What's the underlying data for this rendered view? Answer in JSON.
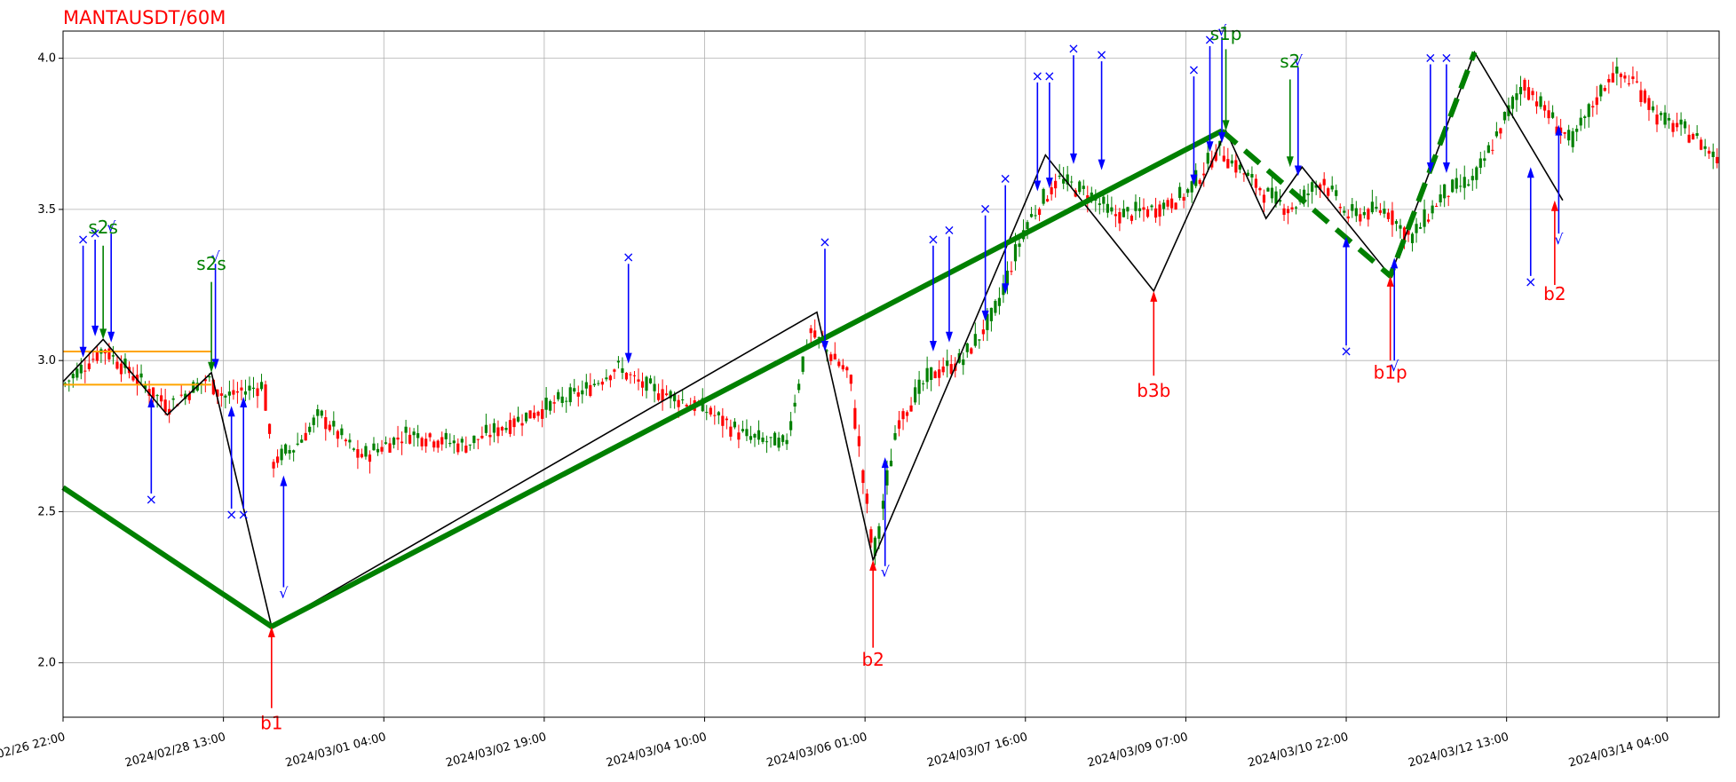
{
  "chart_data": {
    "type": "line",
    "title": "MANTAUSDT/60M",
    "title_color": "#ff0000",
    "xlabel": "",
    "ylabel": "",
    "grid": true,
    "ylim": [
      1.82,
      4.09
    ],
    "xlim": [
      0,
      413
    ],
    "y_ticks": [
      2.0,
      2.5,
      3.0,
      3.5,
      4.0
    ],
    "y_tick_labels": [
      "2.0",
      "2.5",
      "3.0",
      "3.5",
      "4.0"
    ],
    "x_ticks": [
      0,
      40,
      80,
      120,
      160,
      200,
      240,
      280,
      320,
      360,
      400
    ],
    "x_tick_labels": [
      "2024/02/26 22:00",
      "2024/02/28 13:00",
      "2024/03/01 04:00",
      "2024/03/02 19:00",
      "2024/03/04 10:00",
      "2024/03/06 01:00",
      "2024/03/07 16:00",
      "2024/03/09 07:00",
      "2024/03/10 22:00",
      "2024/03/12 13:00",
      "2024/03/14 04:00"
    ],
    "colors": {
      "up": "#008000",
      "down": "#ff0000",
      "zigzag": "#000000",
      "trend": "#008000",
      "box": "#ffa500",
      "blue": "#0000ff",
      "buy": "#ff0000",
      "sell": "#008000"
    },
    "price_anchors": [
      [
        0,
        2.92
      ],
      [
        10,
        3.04
      ],
      [
        26,
        2.85
      ],
      [
        36,
        2.94
      ],
      [
        40,
        2.88
      ],
      [
        50,
        2.92
      ],
      [
        52,
        2.66
      ],
      [
        58,
        2.72
      ],
      [
        64,
        2.82
      ],
      [
        74,
        2.68
      ],
      [
        86,
        2.76
      ],
      [
        100,
        2.72
      ],
      [
        116,
        2.82
      ],
      [
        130,
        2.9
      ],
      [
        138,
        2.98
      ],
      [
        144,
        2.92
      ],
      [
        160,
        2.84
      ],
      [
        170,
        2.75
      ],
      [
        180,
        2.72
      ],
      [
        186,
        3.1
      ],
      [
        196,
        2.95
      ],
      [
        202,
        2.35
      ],
      [
        208,
        2.8
      ],
      [
        216,
        2.95
      ],
      [
        224,
        3.0
      ],
      [
        232,
        3.15
      ],
      [
        240,
        3.45
      ],
      [
        248,
        3.6
      ],
      [
        256,
        3.55
      ],
      [
        262,
        3.48
      ],
      [
        272,
        3.5
      ],
      [
        280,
        3.55
      ],
      [
        288,
        3.7
      ],
      [
        296,
        3.6
      ],
      [
        300,
        3.55
      ],
      [
        306,
        3.5
      ],
      [
        314,
        3.6
      ],
      [
        320,
        3.48
      ],
      [
        330,
        3.5
      ],
      [
        336,
        3.4
      ],
      [
        344,
        3.55
      ],
      [
        352,
        3.6
      ],
      [
        364,
        3.92
      ],
      [
        376,
        3.72
      ],
      [
        386,
        3.95
      ],
      [
        392,
        3.92
      ],
      [
        398,
        3.8
      ],
      [
        406,
        3.75
      ],
      [
        413,
        3.66
      ]
    ],
    "zigzag": [
      [
        0,
        2.93
      ],
      [
        10,
        3.07
      ],
      [
        26,
        2.82
      ],
      [
        37,
        2.96
      ],
      [
        52,
        2.12
      ],
      [
        188,
        3.16
      ],
      [
        202,
        2.34
      ],
      [
        245,
        3.68
      ],
      [
        272,
        3.23
      ],
      [
        290,
        3.76
      ],
      [
        300,
        3.47
      ],
      [
        309,
        3.64
      ],
      [
        331,
        3.28
      ],
      [
        352,
        4.02
      ],
      [
        374,
        3.53
      ]
    ],
    "trend_solid": [
      [
        0,
        2.58
      ],
      [
        52,
        2.12
      ],
      [
        289,
        3.76
      ]
    ],
    "trend_dashed": [
      [
        289,
        3.76
      ],
      [
        331,
        3.28
      ],
      [
        352,
        4.02
      ]
    ],
    "box_lines": [
      {
        "y": 3.03,
        "x_start": 0,
        "x_end": 37
      },
      {
        "y": 2.92,
        "x_start": 0,
        "x_end": 37
      }
    ],
    "blue_markers": [
      {
        "x": 5,
        "y_top": 3.38,
        "y_tip": 3.01,
        "dir": "down",
        "symbol": "×"
      },
      {
        "x": 8,
        "y_top": 3.4,
        "y_tip": 3.08,
        "dir": "down",
        "symbol": "×"
      },
      {
        "x": 12,
        "y_top": 3.42,
        "y_tip": 3.06,
        "dir": "down",
        "symbol": "√"
      },
      {
        "x": 22,
        "y_top": 2.56,
        "y_tip": 2.88,
        "dir": "up",
        "symbol": "×"
      },
      {
        "x": 38,
        "y_top": 3.32,
        "y_tip": 2.97,
        "dir": "down",
        "symbol": "√"
      },
      {
        "x": 42,
        "y_top": 2.51,
        "y_tip": 2.85,
        "dir": "up",
        "symbol": "×"
      },
      {
        "x": 45,
        "y_top": 2.51,
        "y_tip": 2.88,
        "dir": "up",
        "symbol": "×"
      },
      {
        "x": 55,
        "y_top": 2.25,
        "y_tip": 2.62,
        "dir": "up",
        "symbol": "√"
      },
      {
        "x": 141,
        "y_top": 3.32,
        "y_tip": 2.99,
        "dir": "down",
        "symbol": "×"
      },
      {
        "x": 190,
        "y_top": 3.37,
        "y_tip": 3.03,
        "dir": "down",
        "symbol": "×"
      },
      {
        "x": 205,
        "y_top": 2.32,
        "y_tip": 2.68,
        "dir": "up",
        "symbol": "√"
      },
      {
        "x": 217,
        "y_top": 3.38,
        "y_tip": 3.03,
        "dir": "down",
        "symbol": "×"
      },
      {
        "x": 221,
        "y_top": 3.41,
        "y_tip": 3.06,
        "dir": "down",
        "symbol": "×"
      },
      {
        "x": 230,
        "y_top": 3.48,
        "y_tip": 3.13,
        "dir": "down",
        "symbol": "×"
      },
      {
        "x": 235,
        "y_top": 3.58,
        "y_tip": 3.22,
        "dir": "down",
        "symbol": "×"
      },
      {
        "x": 243,
        "y_top": 3.92,
        "y_tip": 3.56,
        "dir": "down",
        "symbol": "×"
      },
      {
        "x": 246,
        "y_top": 3.92,
        "y_tip": 3.57,
        "dir": "down",
        "symbol": "×"
      },
      {
        "x": 252,
        "y_top": 4.01,
        "y_tip": 3.65,
        "dir": "down",
        "symbol": "×"
      },
      {
        "x": 259,
        "y_top": 3.99,
        "y_tip": 3.63,
        "dir": "down",
        "symbol": "×"
      },
      {
        "x": 282,
        "y_top": 3.94,
        "y_tip": 3.58,
        "dir": "down",
        "symbol": "×"
      },
      {
        "x": 286,
        "y_top": 4.04,
        "y_tip": 3.69,
        "dir": "down",
        "symbol": "×"
      },
      {
        "x": 289,
        "y_top": 4.07,
        "y_tip": 3.72,
        "dir": "down",
        "symbol": "√"
      },
      {
        "x": 308,
        "y_top": 3.97,
        "y_tip": 3.61,
        "dir": "down",
        "symbol": "√"
      },
      {
        "x": 320,
        "y_top": 3.05,
        "y_tip": 3.41,
        "dir": "up",
        "symbol": "×"
      },
      {
        "x": 332,
        "y_top": 3.0,
        "y_tip": 3.34,
        "dir": "up",
        "symbol": "√"
      },
      {
        "x": 341,
        "y_top": 3.98,
        "y_tip": 3.62,
        "dir": "down",
        "symbol": "×"
      },
      {
        "x": 345,
        "y_top": 3.98,
        "y_tip": 3.62,
        "dir": "down",
        "symbol": "×"
      },
      {
        "x": 366,
        "y_top": 3.28,
        "y_tip": 3.64,
        "dir": "up",
        "symbol": "×"
      },
      {
        "x": 373,
        "y_top": 3.42,
        "y_tip": 3.78,
        "dir": "up",
        "symbol": "√"
      }
    ],
    "buy_signals": [
      {
        "x": 52,
        "y_tip": 2.12,
        "y_base": 1.85,
        "label": "b1",
        "label_y": 1.78
      },
      {
        "x": 202,
        "y_tip": 2.34,
        "y_base": 2.05,
        "label": "b2",
        "label_y": 1.99
      },
      {
        "x": 272,
        "y_tip": 3.23,
        "y_base": 2.95,
        "label": "b3b",
        "label_y": 2.88
      },
      {
        "x": 331,
        "y_tip": 3.28,
        "y_base": 3.0,
        "label": "b1p",
        "label_y": 2.94
      },
      {
        "x": 372,
        "y_tip": 3.53,
        "y_base": 3.25,
        "label": "b2",
        "label_y": 3.2
      }
    ],
    "sell_signals": [
      {
        "x": 10,
        "y_tip": 3.07,
        "y_base": 3.38,
        "label": "s2s",
        "label_y": 3.42
      },
      {
        "x": 37,
        "y_tip": 2.96,
        "y_base": 3.26,
        "label": "s2s",
        "label_y": 3.3
      },
      {
        "x": 290,
        "y_tip": 3.76,
        "y_base": 4.03,
        "label": "s1p",
        "label_y": 4.06
      },
      {
        "x": 306,
        "y_tip": 3.64,
        "y_base": 3.93,
        "label": "s2",
        "label_y": 3.97
      }
    ]
  }
}
